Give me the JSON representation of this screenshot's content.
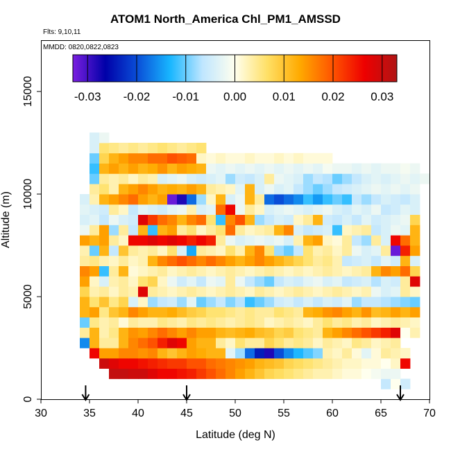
{
  "chart_data": {
    "type": "heatmap",
    "title": "ATOM1 North_America Chl_PM1_AMSSD",
    "annotations": {
      "flights": "Flts: 9,10,11",
      "dates": "MMDD: 0820,0822,0823"
    },
    "xlabel": "Latitude (deg N)",
    "ylabel": "Altitude (m)",
    "xlim": [
      30,
      70
    ],
    "ylim": [
      0,
      17500
    ],
    "xticks": [
      30,
      35,
      40,
      45,
      50,
      55,
      60,
      65,
      70
    ],
    "xtick_labels": [
      "30",
      "35",
      "40",
      "45",
      "50",
      "55",
      "60",
      "65",
      "70"
    ],
    "yticks": [
      0,
      5000,
      10000,
      15000
    ],
    "ytick_labels": [
      "0",
      "5000",
      "10000",
      "15000"
    ],
    "colorbar": {
      "range": [
        -0.033,
        0.033
      ],
      "ticks": [
        -0.03,
        -0.02,
        -0.01,
        0.0,
        0.01,
        0.02,
        0.03
      ],
      "tick_labels": [
        "-0.03",
        "-0.02",
        "-0.01",
        "0.00",
        "0.01",
        "0.02",
        "0.03"
      ],
      "colors": [
        "#7B1FE0",
        "#0000A8",
        "#0A4FD8",
        "#18B6FF",
        "#BFE6FF",
        "#FFFFEE",
        "#FFE066",
        "#FFAA00",
        "#FF5500",
        "#EE0000",
        "#B01515"
      ]
    },
    "arrows_latitude": [
      34.6,
      45.0,
      67.0
    ],
    "lat_bin_deg": 1,
    "alt_bin_m": 500,
    "layers": [
      {
        "alt": 750,
        "lat_from": 65,
        "values": [
          -0.006,
          0,
          -0.005
        ]
      },
      {
        "alt": 1250,
        "lat_from": 37,
        "values": [
          0.031,
          0.031,
          0.03,
          0.03,
          0.028,
          0.026,
          0.026,
          0.025,
          0.024,
          0.022,
          0.02,
          0.018,
          0.016,
          0.014,
          0.012,
          0.01,
          0.008,
          0.007,
          0.006,
          0.005,
          0.004,
          0.003,
          0.003,
          0.002,
          0.001,
          0.001,
          0,
          -0.001,
          -0.002,
          -0.002
        ]
      },
      {
        "alt": 1750,
        "lat_from": 36,
        "values": [
          0.03,
          0.028,
          0.026,
          0.026,
          0.025,
          0.024,
          0.023,
          0.022,
          0.022,
          0.02,
          0.02,
          0.018,
          0.017,
          0.016,
          0.015,
          0.014,
          0.012,
          0.011,
          0.01,
          0.008,
          0.007,
          0.006,
          0.005,
          0.004,
          0.003,
          0.002,
          0.002,
          0.001,
          0.001,
          0,
          0.002,
          0.026
        ]
      },
      {
        "alt": 2250,
        "lat_from": 35,
        "values": [
          0.026,
          0.014,
          0.014,
          0.016,
          0.016,
          0.015,
          0.016,
          0.012,
          0.01,
          0.012,
          0.014,
          0.013,
          0.012,
          0.012,
          -0.003,
          -0.008,
          -0.018,
          -0.024,
          -0.028,
          -0.02,
          -0.016,
          -0.013,
          -0.011,
          -0.009,
          0.003,
          0.002,
          0.004,
          0.001,
          -0.003,
          0.001,
          0.004,
          0.003,
          0.002
        ]
      },
      {
        "alt": 2750,
        "lat_from": 34,
        "values": [
          -0.016,
          0.012,
          0.004,
          0.004,
          0.012,
          0.016,
          0.018,
          0.02,
          0.024,
          0.028,
          0.026,
          0.014,
          0.012,
          0.012,
          0.004,
          0.002,
          0.006,
          0.004,
          0.004,
          0.008,
          0.006,
          0.004,
          0.005,
          0.004,
          0.002,
          0.004,
          0.003,
          0.002,
          0.005,
          0.004,
          0.002,
          0.003,
          0.004
        ]
      },
      {
        "alt": 3250,
        "lat_from": 34,
        "values": [
          0.004,
          0.012,
          0.003,
          0.005,
          0.012,
          0.015,
          0.014,
          0.016,
          0.018,
          0.016,
          0.014,
          0.016,
          0.014,
          0.014,
          0.012,
          0.011,
          0.012,
          0.013,
          0.011,
          0.01,
          0.008,
          0.009,
          0.006,
          0.005,
          0.004,
          0.012,
          0.014,
          0.016,
          0.018,
          0.02,
          0.022,
          0.024,
          0.028,
          0,
          0.003
        ]
      },
      {
        "alt": 3750,
        "lat_from": 34,
        "values": [
          -0.01,
          0.005,
          0.003,
          0.004,
          0.001,
          0.004,
          0.003,
          0.003,
          0.005,
          0.004,
          0.003,
          0.005,
          0.004,
          0.005,
          0.004,
          0.003,
          0.004,
          0.005,
          0.004,
          0.002,
          0.003,
          0.004,
          0.003,
          0.002,
          0.004,
          0.006,
          0.004,
          0.005,
          0.003,
          0.004,
          0.002,
          0.003,
          0.004,
          0.003,
          0.002
        ]
      },
      {
        "alt": 4250,
        "lat_from": 34,
        "values": [
          0.012,
          0.014,
          0.005,
          0.01,
          0.012,
          0.016,
          0.014,
          0.012,
          0.012,
          0.013,
          0.011,
          0.009,
          0.008,
          0.006,
          0.006,
          0.005,
          0.004,
          0.005,
          0.004,
          0.004,
          0.006,
          0.005,
          0.004,
          0.012,
          0.013,
          0.015,
          0.016,
          0.014,
          0.012,
          0.015,
          0.011,
          0.012,
          0.014,
          0.012,
          0.014
        ]
      },
      {
        "alt": 4750,
        "lat_from": 34,
        "values": [
          0.012,
          0.006,
          0.01,
          0.005,
          0.008,
          -0.004,
          0.002,
          -0.008,
          -0.006,
          -0.005,
          -0.008,
          -0.003,
          -0.01,
          -0.008,
          -0.006,
          -0.009,
          -0.007,
          -0.012,
          -0.01,
          -0.008,
          -0.005,
          -0.004,
          -0.006,
          -0.004,
          -0.006,
          -0.004,
          -0.005,
          -0.003,
          -0.008,
          -0.006,
          -0.006,
          -0.007,
          -0.008,
          -0.009,
          -0.01
        ]
      },
      {
        "alt": 5250,
        "lat_from": 34,
        "values": [
          0.008,
          0.003,
          0.004,
          0.002,
          0.004,
          0.003,
          0.028,
          0.004,
          0.003,
          0.002,
          0.003,
          0.004,
          0.003,
          0.002,
          0.003,
          0.004,
          0.003,
          0.002,
          0.004,
          0.003,
          0.002,
          0.003,
          0.004,
          0.003,
          0.002,
          0.003,
          0.004,
          0.003,
          0.002,
          0.003,
          -0.002,
          -0.004,
          -0.003,
          0.004,
          0.002
        ]
      },
      {
        "alt": 5750,
        "lat_from": 34,
        "values": [
          0.014,
          0.002,
          -0.004,
          0.003,
          0.004,
          0.002,
          0.006,
          0.008,
          0.002,
          -0.002,
          -0.005,
          -0.003,
          -0.006,
          -0.002,
          -0.003,
          0.004,
          -0.002,
          -0.006,
          -0.008,
          -0.01,
          -0.006,
          -0.004,
          -0.005,
          -0.003,
          -0.002,
          -0.004,
          -0.003,
          -0.006,
          -0.005,
          -0.004,
          -0.007,
          -0.004,
          -0.005,
          0.004,
          0.028
        ]
      },
      {
        "alt": 6250,
        "lat_from": 34,
        "values": [
          0.016,
          0.014,
          -0.012,
          0.004,
          0.012,
          0.001,
          0.002,
          0.003,
          0.004,
          0.002,
          0.003,
          0.004,
          0.003,
          0.002,
          0.003,
          0.004,
          0.003,
          0.002,
          0.003,
          0.004,
          0.003,
          0.002,
          0.003,
          0.002,
          0.003,
          0.004,
          0.003,
          0.002,
          0.003,
          0.004,
          0.012,
          0.016,
          0.014,
          0.018,
          0.008
        ]
      },
      {
        "alt": 6750,
        "lat_from": 34,
        "values": [
          0.004,
          0.005,
          0.003,
          0.002,
          0.004,
          0.002,
          0.003,
          0.012,
          0.016,
          0.018,
          0.02,
          0.018,
          0.016,
          0.018,
          0.016,
          0.014,
          0.012,
          0.014,
          0.016,
          0.014,
          0.012,
          0.01,
          0.008,
          0.006,
          0.004,
          0.005,
          0.003,
          -0.006,
          -0.005,
          -0.004,
          -0.006,
          -0.003,
          -0.005,
          0.012,
          -0.004
        ]
      },
      {
        "alt": 7250,
        "lat_from": 34,
        "values": [
          0.003,
          -0.01,
          0.012,
          -0.006,
          0.01,
          0.004,
          0.003,
          0.004,
          0.002,
          0.006,
          -0.004,
          -0.014,
          0.004,
          0.003,
          0.002,
          0.006,
          0.003,
          0.012,
          0.016,
          0.006,
          -0.008,
          -0.01,
          -0.006,
          0.006,
          0.003,
          0.004,
          0.002,
          0.004,
          -0.002,
          -0.004,
          -0.003,
          0.004,
          -0.032,
          0.024,
          0.014
        ]
      },
      {
        "alt": 7750,
        "lat_from": 34,
        "values": [
          0.014,
          0.012,
          0.014,
          0.004,
          0.002,
          0.026,
          0.026,
          0.028,
          0.026,
          0.028,
          0.026,
          0.024,
          0.026,
          0.024,
          0.004,
          -0.002,
          -0.004,
          -0.003,
          -0.002,
          -0.003,
          -0.002,
          -0.004,
          0.003,
          0.012,
          0.014,
          0.002,
          0.001,
          0.004,
          -0.006,
          -0.008,
          0.004,
          -0.004,
          0.026,
          0.018,
          0.012
        ]
      },
      {
        "alt": 8250,
        "lat_from": 34,
        "values": [
          -0.002,
          0.004,
          0.014,
          -0.008,
          0.004,
          -0.006,
          0.012,
          -0.012,
          0.012,
          0.014,
          0.004,
          0.006,
          0.002,
          0.004,
          0.006,
          0.018,
          0.004,
          0.002,
          0.003,
          0.004,
          0.012,
          0.016,
          -0.004,
          -0.006,
          -0.005,
          -0.004,
          -0.012,
          0.002,
          0.003,
          0.004,
          -0.006,
          -0.004,
          -0.002,
          -0.003,
          0.012
        ]
      },
      {
        "alt": 8750,
        "lat_from": 34,
        "values": [
          -0.004,
          -0.003,
          -0.006,
          -0.002,
          -0.004,
          -0.005,
          0.028,
          0.022,
          0.018,
          0.016,
          0.012,
          0.016,
          0.018,
          0.006,
          -0.012,
          0.016,
          0.02,
          0.012,
          -0.008,
          -0.006,
          -0.004,
          -0.005,
          0.002,
          0.004,
          0.012,
          -0.005,
          -0.006,
          -0.004,
          -0.006,
          -0.003,
          -0.005,
          -0.004,
          -0.003,
          -0.002,
          0.008
        ]
      },
      {
        "alt": 9250,
        "lat_from": 34,
        "values": [
          -0.003,
          -0.004,
          -0.005,
          0.004,
          0.002,
          -0.006,
          -0.003,
          -0.004,
          -0.005,
          -0.003,
          -0.002,
          0.003,
          -0.004,
          -0.003,
          0.018,
          0.026,
          -0.002,
          0.004,
          0.002,
          -0.004,
          -0.003,
          -0.002,
          -0.003,
          -0.004,
          -0.003,
          -0.002,
          -0.004,
          -0.005,
          -0.003,
          -0.004,
          -0.002,
          -0.006,
          -0.005,
          -0.003,
          -0.004
        ]
      },
      {
        "alt": 9750,
        "lat_from": 34,
        "values": [
          -0.004,
          0.003,
          0.012,
          0.014,
          0.016,
          0.018,
          0.014,
          0.012,
          0.014,
          -0.032,
          -0.028,
          -0.018,
          -0.008,
          0.002,
          0.012,
          -0.004,
          -0.002,
          0.012,
          0.004,
          -0.018,
          -0.02,
          -0.018,
          -0.016,
          -0.012,
          -0.015,
          -0.012,
          -0.01,
          -0.012,
          -0.006,
          -0.008,
          -0.006,
          -0.004,
          -0.005,
          -0.006,
          -0.004
        ]
      },
      {
        "alt": 10250,
        "lat_from": 35,
        "values": [
          0.004,
          0.006,
          0.003,
          0.012,
          0.014,
          0.016,
          0.014,
          0.012,
          0.013,
          0.012,
          0.014,
          0.012,
          0.004,
          0.003,
          0.002,
          -0.003,
          0.012,
          -0.004,
          -0.002,
          -0.004,
          -0.003,
          -0.006,
          -0.008,
          -0.01,
          -0.008,
          -0.006,
          -0.005,
          -0.004,
          -0.003,
          -0.002,
          -0.003,
          -0.002,
          -0.003,
          -0.002
        ]
      },
      {
        "alt": 10750,
        "lat_from": 35,
        "values": [
          -0.01,
          0.004,
          0.003,
          0.004,
          0.002,
          0.004,
          0.003,
          -0.004,
          -0.003,
          -0.002,
          -0.004,
          -0.005,
          -0.004,
          -0.003,
          -0.008,
          -0.005,
          -0.006,
          -0.004,
          0.004,
          -0.002,
          -0.003,
          -0.004,
          -0.008,
          -0.006,
          -0.007,
          -0.01,
          -0.008,
          -0.006,
          -0.004,
          -0.003,
          -0.004,
          -0.003,
          -0.002,
          -0.003,
          -0.002
        ]
      },
      {
        "alt": 11250,
        "lat_from": 35,
        "values": [
          -0.012,
          0.012,
          0.014,
          0.012,
          0.014,
          0.012,
          0.013,
          0.015,
          0.012,
          0.014,
          0.013,
          0.012,
          -0.002,
          -0.003,
          -0.002,
          -0.003,
          -0.002,
          -0.003,
          -0.002,
          -0.003,
          -0.002,
          -0.003,
          -0.002,
          -0.003,
          -0.001,
          -0.002,
          -0.002,
          -0.003,
          -0.002,
          -0.003,
          -0.002,
          -0.002,
          -0.001,
          -0.002
        ]
      },
      {
        "alt": 11750,
        "lat_from": 35,
        "values": [
          -0.01,
          0.008,
          0.012,
          0.014,
          0.016,
          0.016,
          0.018,
          0.018,
          0.02,
          0.019,
          0.018,
          0.002,
          0.001,
          0.002,
          0.001,
          0.001,
          0.002,
          0.001,
          0.001,
          0.002,
          0.001,
          0.002,
          0.001,
          0.001,
          0.001
        ]
      },
      {
        "alt": 12250,
        "lat_from": 35,
        "values": [
          -0.004,
          0.006,
          0.005,
          0.004,
          0.005,
          0.004,
          0.005,
          0.006,
          0.005,
          0.004,
          0.005,
          0.006
        ]
      },
      {
        "alt": 12750,
        "lat_from": 35,
        "values": [
          -0.004,
          -0.002
        ]
      }
    ]
  }
}
